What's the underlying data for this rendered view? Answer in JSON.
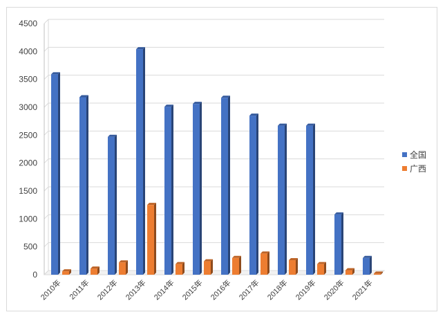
{
  "chart_data": {
    "type": "bar",
    "categories": [
      "2010年",
      "2011年",
      "2012年",
      "2013年",
      "2014年",
      "2015年",
      "2016年",
      "2017年",
      "2018年",
      "2019年",
      "2020年",
      "2021年"
    ],
    "series": [
      {
        "name": "全国",
        "color": "#4472c4",
        "values": [
          3590,
          3180,
          2470,
          4040,
          3010,
          3060,
          3170,
          2850,
          2670,
          2670,
          1080,
          300
        ]
      },
      {
        "name": "广西",
        "color": "#ed7d31",
        "values": [
          60,
          110,
          220,
          1250,
          190,
          240,
          300,
          380,
          260,
          190,
          80,
          20
        ]
      }
    ],
    "yticks": [
      "0",
      "500",
      "1000",
      "1500",
      "2000",
      "2500",
      "3000",
      "3500",
      "4000",
      "4500"
    ],
    "ylim": [
      0,
      4500
    ],
    "grid": true,
    "legend_position": "right"
  }
}
